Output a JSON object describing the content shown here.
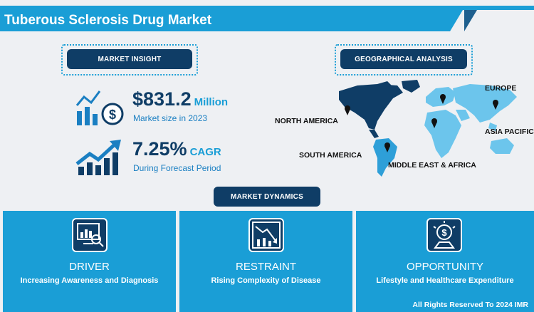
{
  "title": "Tuberous Sclerosis Drug Market",
  "market_insight": {
    "label": "MARKET INSIGHT",
    "size_value": "$831.2",
    "size_unit": "Million",
    "size_caption": "Market size in 2023",
    "cagr_value": "7.25%",
    "cagr_unit": "CAGR",
    "cagr_caption": "During Forecast Period"
  },
  "geo": {
    "label": "GEOGRAPHICAL ANALYSIS",
    "regions": {
      "europe": "EUROPE",
      "north_america": "NORTH AMERICA",
      "asia_pacific": "ASIA PACIFIC",
      "south_america": "SOUTH AMERICA",
      "mea": "MIDDLE EAST & AFRICA"
    }
  },
  "dynamics": {
    "label": "MARKET DYNAMICS",
    "driver": {
      "heading": "DRIVER",
      "text": "Increasing Awareness and Diagnosis"
    },
    "restraint": {
      "heading": "RESTRAINT",
      "text": "Rising Complexity of Disease"
    },
    "opportunity": {
      "heading": "OPPORTUNITY",
      "text": "Lifestyle and Healthcare Expenditure"
    }
  },
  "footer": "All Rights Reserved To 2024 IMR",
  "colors": {
    "accent": "#1a9ed6",
    "navy": "#0f3d66",
    "background": "#eef0f3"
  }
}
